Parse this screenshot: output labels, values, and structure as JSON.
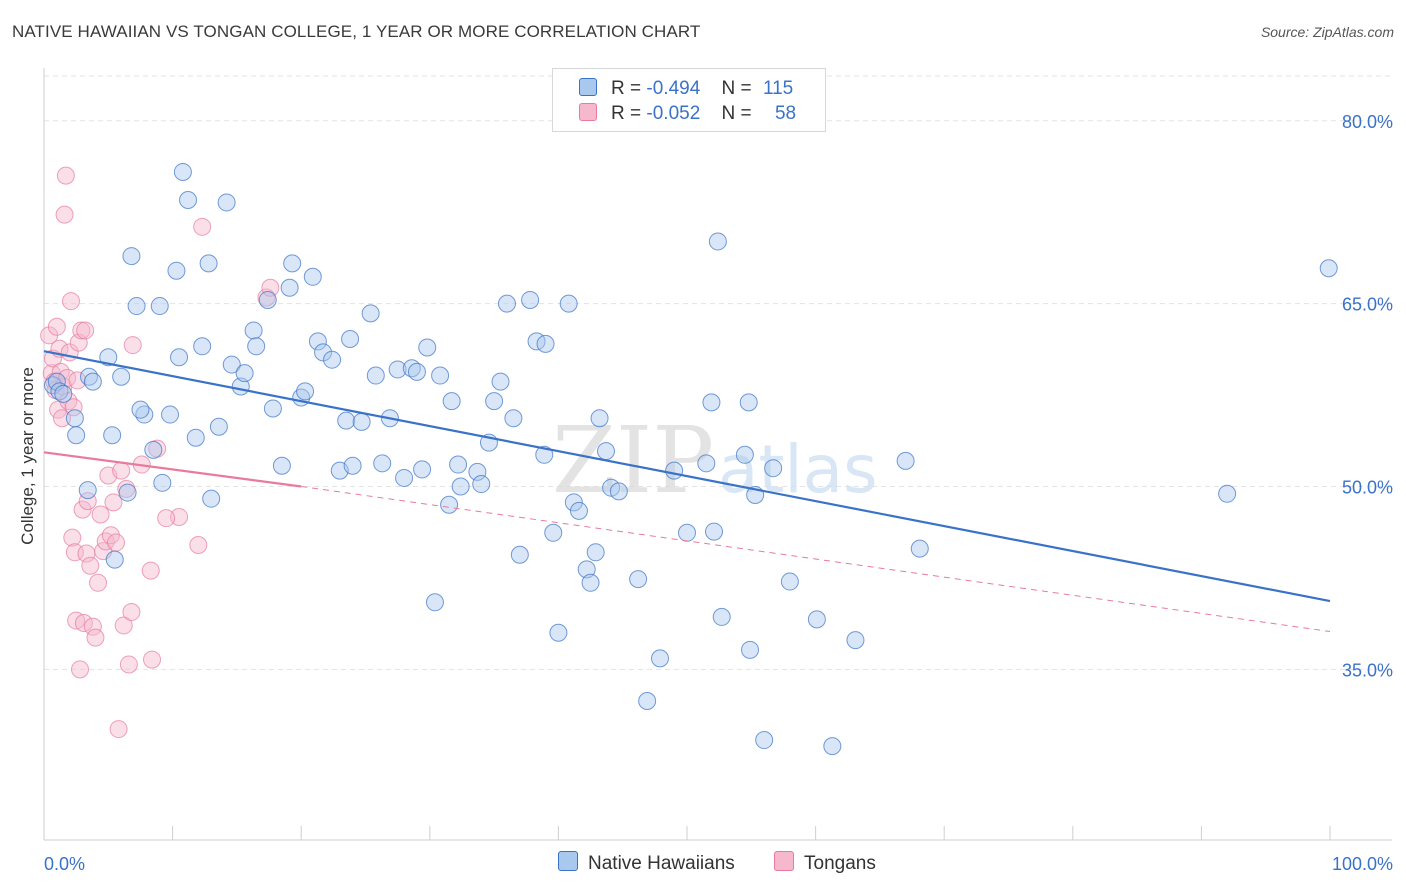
{
  "title": "NATIVE HAWAIIAN VS TONGAN COLLEGE, 1 YEAR OR MORE CORRELATION CHART",
  "source": "Source: ZipAtlas.com",
  "colors": {
    "blue": "#3a72c8",
    "blue_fill": "#a9c8ee",
    "pink": "#e87aa0",
    "pink_fill": "#f5b8cc"
  },
  "legend": {
    "rows": [
      {
        "r_label": "R =",
        "r_value": "-0.494",
        "n_label": "N =",
        "n_value": "115"
      },
      {
        "r_label": "R =",
        "r_value": "-0.052",
        "n_label": "N =",
        "n_value": "58"
      }
    ]
  },
  "bottom_legend": {
    "series1": "Native Hawaiians",
    "series2": "Tongans"
  },
  "chart_data": {
    "type": "scatter",
    "title": "NATIVE HAWAIIAN VS TONGAN COLLEGE, 1 YEAR OR MORE CORRELATION CHART",
    "ylabel": "College, 1 year or more",
    "xlabel": "",
    "xlim": [
      0,
      100
    ],
    "ylim": [
      21,
      84
    ],
    "x_tick_labels": [
      "0.0%",
      "100.0%"
    ],
    "y_ticks": [
      35,
      50,
      65,
      80
    ],
    "y_tick_labels": [
      "35.0%",
      "50.0%",
      "65.0%",
      "80.0%"
    ],
    "grid": true,
    "legend_position": "top-center",
    "series": [
      {
        "name": "Native Hawaiians",
        "color": "#3a72c8",
        "trend": {
          "x0": 0,
          "y0": 61.1,
          "x1": 100,
          "y1": 40.6
        },
        "points": [
          [
            0.7,
            58.3
          ],
          [
            1.0,
            58.6
          ],
          [
            1.2,
            57.8
          ],
          [
            1.5,
            57.6
          ],
          [
            2.4,
            55.6
          ],
          [
            2.5,
            54.2
          ],
          [
            3.4,
            49.7
          ],
          [
            3.5,
            59.0
          ],
          [
            3.8,
            58.6
          ],
          [
            5.0,
            60.6
          ],
          [
            5.3,
            54.2
          ],
          [
            6.0,
            59.0
          ],
          [
            5.5,
            44.0
          ],
          [
            6.5,
            49.5
          ],
          [
            7.2,
            64.8
          ],
          [
            7.8,
            55.9
          ],
          [
            6.8,
            68.9
          ],
          [
            7.5,
            56.3
          ],
          [
            8.5,
            53.0
          ],
          [
            9.0,
            64.8
          ],
          [
            9.2,
            50.3
          ],
          [
            9.8,
            55.9
          ],
          [
            10.3,
            67.7
          ],
          [
            10.8,
            75.8
          ],
          [
            10.5,
            60.6
          ],
          [
            11.2,
            73.5
          ],
          [
            11.8,
            54.0
          ],
          [
            12.3,
            61.5
          ],
          [
            12.8,
            68.3
          ],
          [
            13.0,
            49.0
          ],
          [
            13.6,
            54.9
          ],
          [
            14.2,
            73.3
          ],
          [
            14.6,
            60.0
          ],
          [
            15.3,
            58.2
          ],
          [
            15.6,
            59.3
          ],
          [
            16.3,
            62.8
          ],
          [
            16.5,
            61.5
          ],
          [
            17.4,
            65.3
          ],
          [
            17.8,
            56.4
          ],
          [
            18.5,
            51.7
          ],
          [
            19.1,
            66.3
          ],
          [
            19.3,
            68.3
          ],
          [
            20.0,
            57.3
          ],
          [
            20.3,
            57.8
          ],
          [
            20.9,
            67.2
          ],
          [
            21.3,
            61.9
          ],
          [
            21.7,
            61.0
          ],
          [
            22.4,
            60.4
          ],
          [
            23.0,
            51.3
          ],
          [
            23.5,
            55.4
          ],
          [
            23.8,
            62.1
          ],
          [
            24.0,
            51.7
          ],
          [
            24.7,
            55.3
          ],
          [
            25.4,
            64.2
          ],
          [
            25.8,
            59.1
          ],
          [
            26.3,
            51.9
          ],
          [
            26.9,
            55.6
          ],
          [
            27.5,
            59.6
          ],
          [
            28.0,
            50.7
          ],
          [
            28.6,
            59.7
          ],
          [
            29.0,
            59.4
          ],
          [
            29.4,
            51.4
          ],
          [
            29.8,
            61.4
          ],
          [
            30.4,
            40.5
          ],
          [
            30.8,
            59.1
          ],
          [
            31.5,
            48.5
          ],
          [
            31.7,
            57.0
          ],
          [
            32.2,
            51.8
          ],
          [
            32.4,
            50.0
          ],
          [
            33.7,
            51.2
          ],
          [
            34.0,
            50.2
          ],
          [
            34.6,
            53.6
          ],
          [
            35.0,
            57.0
          ],
          [
            35.5,
            58.6
          ],
          [
            36.0,
            65.0
          ],
          [
            36.5,
            55.6
          ],
          [
            37.0,
            44.4
          ],
          [
            37.8,
            65.3
          ],
          [
            38.3,
            61.9
          ],
          [
            39.0,
            61.7
          ],
          [
            38.9,
            52.6
          ],
          [
            39.6,
            46.2
          ],
          [
            40.8,
            65.0
          ],
          [
            40.0,
            38.0
          ],
          [
            41.2,
            48.7
          ],
          [
            41.6,
            48.0
          ],
          [
            42.2,
            43.2
          ],
          [
            42.5,
            42.1
          ],
          [
            42.9,
            44.6
          ],
          [
            43.2,
            55.6
          ],
          [
            43.7,
            52.9
          ],
          [
            44.1,
            49.9
          ],
          [
            44.7,
            49.6
          ],
          [
            46.2,
            42.4
          ],
          [
            46.9,
            32.4
          ],
          [
            47.9,
            35.9
          ],
          [
            49.0,
            51.3
          ],
          [
            50.0,
            46.2
          ],
          [
            51.5,
            51.9
          ],
          [
            52.1,
            46.3
          ],
          [
            51.9,
            56.9
          ],
          [
            52.4,
            70.1
          ],
          [
            52.7,
            39.3
          ],
          [
            54.5,
            52.6
          ],
          [
            54.8,
            56.9
          ],
          [
            54.9,
            36.6
          ],
          [
            55.3,
            49.3
          ],
          [
            56.0,
            29.2
          ],
          [
            56.7,
            51.5
          ],
          [
            58.0,
            42.2
          ],
          [
            60.1,
            39.1
          ],
          [
            61.3,
            28.7
          ],
          [
            63.1,
            37.4
          ],
          [
            67.0,
            52.1
          ],
          [
            68.1,
            44.9
          ],
          [
            92.0,
            49.4
          ],
          [
            99.9,
            67.9
          ]
        ]
      },
      {
        "name": "Tongans",
        "color": "#e87aa0",
        "trend": {
          "x0": 0,
          "y0": 52.8,
          "x1": 20,
          "y1": 50.0,
          "dash_x1": 100,
          "dash_y1": 38.1
        },
        "points": [
          [
            0.4,
            62.4
          ],
          [
            0.6,
            59.3
          ],
          [
            0.7,
            60.5
          ],
          [
            0.8,
            58.6
          ],
          [
            0.9,
            57.9
          ],
          [
            1.0,
            63.1
          ],
          [
            1.1,
            56.3
          ],
          [
            1.2,
            61.3
          ],
          [
            1.3,
            59.4
          ],
          [
            1.4,
            55.6
          ],
          [
            1.5,
            58.2
          ],
          [
            1.6,
            72.3
          ],
          [
            1.7,
            75.5
          ],
          [
            1.8,
            58.9
          ],
          [
            1.9,
            57.0
          ],
          [
            2.0,
            61.0
          ],
          [
            2.1,
            65.2
          ],
          [
            2.2,
            45.8
          ],
          [
            2.3,
            56.5
          ],
          [
            2.4,
            44.6
          ],
          [
            2.5,
            39.0
          ],
          [
            2.6,
            58.7
          ],
          [
            2.7,
            61.8
          ],
          [
            2.8,
            35.0
          ],
          [
            2.9,
            62.8
          ],
          [
            3.0,
            48.1
          ],
          [
            3.1,
            38.8
          ],
          [
            3.2,
            62.8
          ],
          [
            3.3,
            44.5
          ],
          [
            3.4,
            48.8
          ],
          [
            3.6,
            43.5
          ],
          [
            3.8,
            38.5
          ],
          [
            4.0,
            37.6
          ],
          [
            4.2,
            42.1
          ],
          [
            4.4,
            47.7
          ],
          [
            4.6,
            44.7
          ],
          [
            4.8,
            45.5
          ],
          [
            5.0,
            50.9
          ],
          [
            5.2,
            46.0
          ],
          [
            5.4,
            48.7
          ],
          [
            5.6,
            45.4
          ],
          [
            5.8,
            30.1
          ],
          [
            6.0,
            51.3
          ],
          [
            6.2,
            38.6
          ],
          [
            6.4,
            49.8
          ],
          [
            6.6,
            35.4
          ],
          [
            6.8,
            39.7
          ],
          [
            6.9,
            61.6
          ],
          [
            7.6,
            51.8
          ],
          [
            8.3,
            43.1
          ],
          [
            8.4,
            35.8
          ],
          [
            8.8,
            53.1
          ],
          [
            10.5,
            47.5
          ],
          [
            12.3,
            71.3
          ],
          [
            17.3,
            65.5
          ],
          [
            17.6,
            66.3
          ],
          [
            9.5,
            47.4
          ],
          [
            12.0,
            45.2
          ]
        ]
      }
    ]
  }
}
